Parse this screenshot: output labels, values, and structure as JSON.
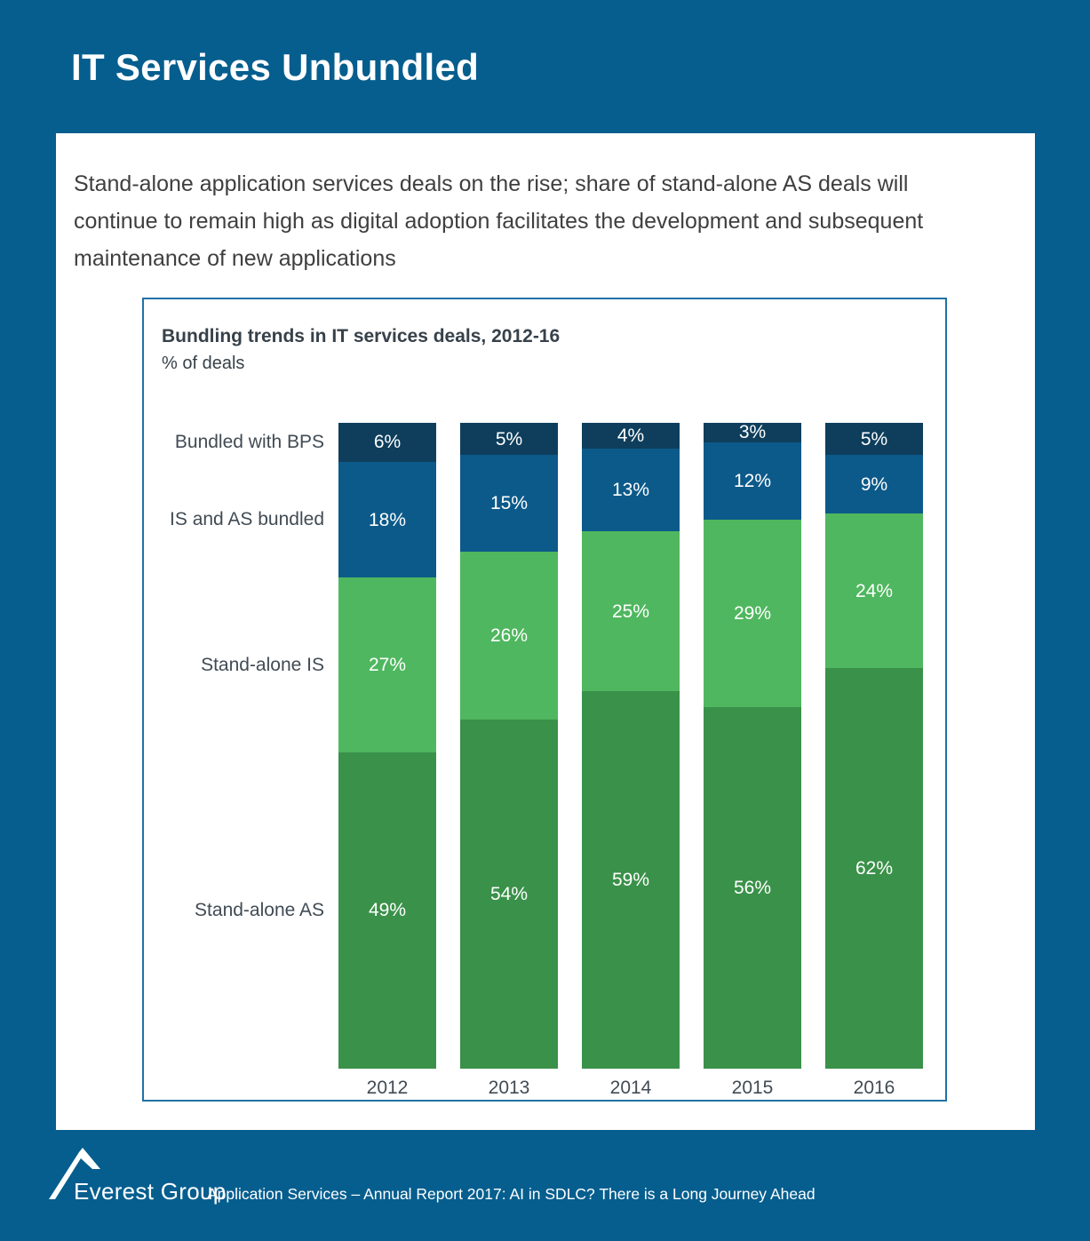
{
  "page": {
    "title": "IT Services Unbundled",
    "background_color": "#055E8E"
  },
  "card": {
    "description": "Stand-alone application services deals on the rise; share of stand-alone AS deals will continue to remain high as digital adoption facilitates the development and subsequent maintenance of new applications"
  },
  "chart": {
    "title": "Bundling trends in IT services deals, 2012-16",
    "subtitle": "% of deals",
    "border_color": "#2171A6"
  },
  "chart_data": {
    "type": "bar",
    "stacked": true,
    "title": "Bundling trends in IT services deals, 2012-16",
    "ylabel": "% of deals",
    "ylim": [
      0,
      100
    ],
    "grid": false,
    "legend_position": "left-category-labels",
    "value_suffix": "%",
    "categories": [
      "2012",
      "2013",
      "2014",
      "2015",
      "2016"
    ],
    "series": [
      {
        "name": "Bundled with BPS",
        "color": "#0E3E5C",
        "values": [
          6,
          5,
          4,
          3,
          5
        ]
      },
      {
        "name": "IS and AS bundled",
        "color": "#0C5A8A",
        "values": [
          18,
          15,
          13,
          12,
          9
        ]
      },
      {
        "name": "Stand-alone IS",
        "color": "#4FB75F",
        "values": [
          27,
          26,
          25,
          29,
          24
        ]
      },
      {
        "name": "Stand-alone AS",
        "color": "#3A9149",
        "values": [
          49,
          54,
          59,
          56,
          62
        ]
      }
    ]
  },
  "footer": {
    "brand": "Everest Group",
    "label": "Application Services – Annual Report 2017: AI in SDLC? There is a Long Journey Ahead"
  }
}
